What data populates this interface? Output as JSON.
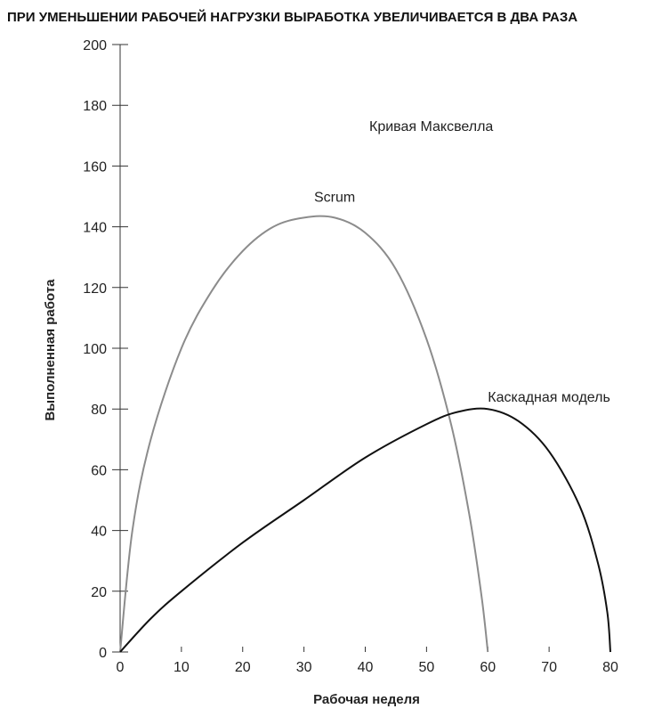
{
  "chart_data": {
    "type": "line",
    "title": "ПРИ УМЕНЬШЕНИИ РАБОЧЕЙ НАГРУЗКИ ВЫРАБОТКА УВЕЛИЧИВАЕТСЯ В ДВА РАЗА",
    "xlabel": "Рабочая неделя",
    "ylabel": "Выполненная работа",
    "xlim": [
      0,
      80
    ],
    "ylim": [
      0,
      200
    ],
    "x_ticks": [
      "0",
      "10",
      "20",
      "30",
      "40",
      "50",
      "60",
      "70",
      "80"
    ],
    "y_ticks": [
      "0",
      "20",
      "40",
      "60",
      "80",
      "100",
      "120",
      "140",
      "160",
      "180",
      "200"
    ],
    "annotation": "Кривая Максвелла",
    "grid": false,
    "series": [
      {
        "name": "Scrum",
        "color": "#8c8c8c",
        "x": [
          0,
          2,
          5,
          10,
          15,
          20,
          25,
          30,
          35,
          40,
          45,
          50,
          54,
          57,
          59,
          60
        ],
        "y": [
          0,
          40,
          70,
          100,
          119,
          132,
          140,
          143,
          143,
          138,
          126,
          103,
          75,
          45,
          18,
          0
        ]
      },
      {
        "name": "Каскадная модель",
        "color": "#111111",
        "x": [
          0,
          5,
          10,
          20,
          30,
          40,
          50,
          55,
          60,
          65,
          70,
          75,
          78,
          79.5,
          80
        ],
        "y": [
          0,
          11,
          20,
          36,
          50,
          64,
          75,
          79,
          80,
          76,
          66,
          48,
          29,
          13,
          0
        ]
      }
    ]
  }
}
